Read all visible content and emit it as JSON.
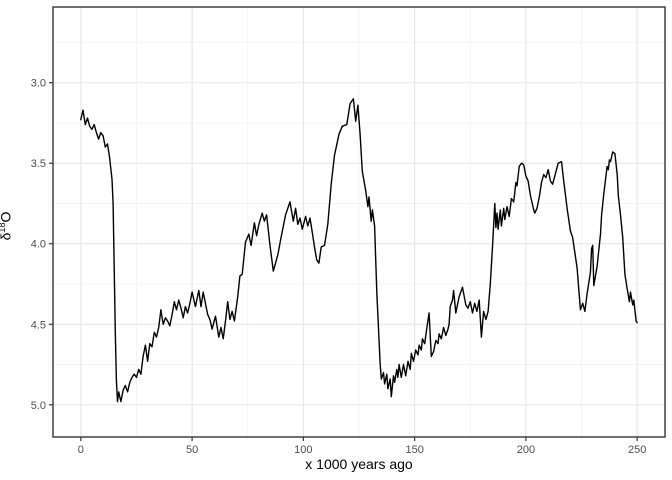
{
  "figure": {
    "background_color": "#ffffff",
    "panel_border_color": "#333333",
    "grid_major_color": "#e8e8e8",
    "grid_minor_color": "#f4f4f4",
    "tick_mark_color": "#333333",
    "tick_label_color": "#4d4d4d"
  },
  "chart_data": {
    "type": "line",
    "title": "",
    "xlabel": "x 1000 years ago",
    "ylabel": "δ18O",
    "ylabel_parts": {
      "base": "δ",
      "sup": "18",
      "suffix": "O"
    },
    "legend_position": "none",
    "grid": true,
    "y_reversed": true,
    "xlim": [
      -12.5,
      262.5
    ],
    "ylim": [
      2.53,
      5.2
    ],
    "x_ticks": [
      0,
      50,
      100,
      150,
      200,
      250
    ],
    "x_tick_labels": [
      "0",
      "50",
      "100",
      "150",
      "200",
      "250"
    ],
    "x_minor_ticks": [
      25,
      75,
      125,
      175,
      225
    ],
    "y_ticks": [
      3.0,
      3.5,
      4.0,
      4.5,
      5.0
    ],
    "y_tick_labels": [
      "3.0",
      "3.5",
      "4.0",
      "4.5",
      "5.0"
    ],
    "y_minor_ticks": [
      2.75,
      3.25,
      3.75,
      4.25,
      4.75
    ],
    "line_color": "#000000",
    "line_width": 1.4,
    "series": [
      {
        "name": "delta18O",
        "points": [
          [
            0,
            3.23
          ],
          [
            1,
            3.17
          ],
          [
            2,
            3.26
          ],
          [
            3,
            3.22
          ],
          [
            4,
            3.27
          ],
          [
            5,
            3.29
          ],
          [
            6,
            3.26
          ],
          [
            7,
            3.31
          ],
          [
            8,
            3.35
          ],
          [
            9,
            3.31
          ],
          [
            10,
            3.33
          ],
          [
            11,
            3.4
          ],
          [
            12,
            3.38
          ],
          [
            13,
            3.47
          ],
          [
            14,
            3.6
          ],
          [
            14.5,
            3.75
          ],
          [
            15.5,
            4.55
          ],
          [
            16,
            4.85
          ],
          [
            16.5,
            4.98
          ],
          [
            17,
            4.92
          ],
          [
            18,
            4.98
          ],
          [
            19,
            4.91
          ],
          [
            20,
            4.88
          ],
          [
            21,
            4.92
          ],
          [
            22,
            4.86
          ],
          [
            23,
            4.83
          ],
          [
            24,
            4.81
          ],
          [
            25,
            4.83
          ],
          [
            26,
            4.78
          ],
          [
            27,
            4.81
          ],
          [
            28,
            4.7
          ],
          [
            29,
            4.63
          ],
          [
            30,
            4.73
          ],
          [
            31,
            4.62
          ],
          [
            32,
            4.64
          ],
          [
            33,
            4.55
          ],
          [
            34,
            4.58
          ],
          [
            35,
            4.52
          ],
          [
            36,
            4.41
          ],
          [
            37,
            4.5
          ],
          [
            38,
            4.46
          ],
          [
            39,
            4.48
          ],
          [
            40,
            4.51
          ],
          [
            41,
            4.44
          ],
          [
            42,
            4.36
          ],
          [
            43,
            4.41
          ],
          [
            44,
            4.35
          ],
          [
            45,
            4.4
          ],
          [
            46,
            4.46
          ],
          [
            47,
            4.39
          ],
          [
            48,
            4.43
          ],
          [
            49,
            4.37
          ],
          [
            50,
            4.3
          ],
          [
            51.5,
            4.39
          ],
          [
            53,
            4.29
          ],
          [
            54,
            4.39
          ],
          [
            55,
            4.3
          ],
          [
            56,
            4.37
          ],
          [
            57,
            4.44
          ],
          [
            58,
            4.47
          ],
          [
            59,
            4.53
          ],
          [
            60.5,
            4.45
          ],
          [
            62,
            4.58
          ],
          [
            63,
            4.52
          ],
          [
            64,
            4.59
          ],
          [
            65,
            4.48
          ],
          [
            66,
            4.36
          ],
          [
            67,
            4.47
          ],
          [
            68,
            4.42
          ],
          [
            69,
            4.48
          ],
          [
            70.5,
            4.33
          ],
          [
            71.5,
            4.2
          ],
          [
            72.5,
            4.19
          ],
          [
            74,
            3.99
          ],
          [
            75.5,
            3.94
          ],
          [
            76.5,
            4.01
          ],
          [
            78,
            3.87
          ],
          [
            79,
            3.95
          ],
          [
            80,
            3.88
          ],
          [
            81.5,
            3.81
          ],
          [
            82.5,
            3.86
          ],
          [
            83.5,
            3.82
          ],
          [
            85,
            4.01
          ],
          [
            86.5,
            4.17
          ],
          [
            88.5,
            4.07
          ],
          [
            90,
            3.96
          ],
          [
            92,
            3.82
          ],
          [
            94,
            3.74
          ],
          [
            95.5,
            3.86
          ],
          [
            96.5,
            3.78
          ],
          [
            97.5,
            3.88
          ],
          [
            98.5,
            3.84
          ],
          [
            99.5,
            3.91
          ],
          [
            101,
            3.83
          ],
          [
            102,
            3.89
          ],
          [
            103,
            3.84
          ],
          [
            104,
            3.93
          ],
          [
            105,
            4.02
          ],
          [
            106,
            4.1
          ],
          [
            107,
            4.12
          ],
          [
            108,
            4.02
          ],
          [
            109.5,
            4.01
          ],
          [
            111,
            3.88
          ],
          [
            112.5,
            3.63
          ],
          [
            114,
            3.45
          ],
          [
            116,
            3.32
          ],
          [
            117.5,
            3.27
          ],
          [
            119.5,
            3.26
          ],
          [
            121,
            3.13
          ],
          [
            122.5,
            3.1
          ],
          [
            123.5,
            3.24
          ],
          [
            124.5,
            3.14
          ],
          [
            125.5,
            3.32
          ],
          [
            126.5,
            3.55
          ],
          [
            128,
            3.67
          ],
          [
            129,
            3.77
          ],
          [
            129.5,
            3.71
          ],
          [
            130.5,
            3.86
          ],
          [
            131,
            3.79
          ],
          [
            132,
            3.89
          ],
          [
            133,
            4.3
          ],
          [
            134.5,
            4.74
          ],
          [
            135,
            4.84
          ],
          [
            136,
            4.8
          ],
          [
            136.5,
            4.87
          ],
          [
            137.5,
            4.81
          ],
          [
            138,
            4.9
          ],
          [
            139,
            4.84
          ],
          [
            139.5,
            4.95
          ],
          [
            140.5,
            4.82
          ],
          [
            141,
            4.86
          ],
          [
            142,
            4.78
          ],
          [
            142.5,
            4.83
          ],
          [
            143,
            4.75
          ],
          [
            144,
            4.83
          ],
          [
            145,
            4.75
          ],
          [
            146,
            4.82
          ],
          [
            147,
            4.73
          ],
          [
            148,
            4.78
          ],
          [
            148.5,
            4.68
          ],
          [
            149.5,
            4.73
          ],
          [
            150.5,
            4.66
          ],
          [
            151.5,
            4.69
          ],
          [
            152,
            4.63
          ],
          [
            153,
            4.66
          ],
          [
            153.5,
            4.59
          ],
          [
            154.5,
            4.62
          ],
          [
            155.5,
            4.52
          ],
          [
            156.5,
            4.43
          ],
          [
            157.5,
            4.7
          ],
          [
            158.5,
            4.67
          ],
          [
            159.5,
            4.6
          ],
          [
            160.5,
            4.62
          ],
          [
            161,
            4.56
          ],
          [
            162,
            4.59
          ],
          [
            163,
            4.52
          ],
          [
            164,
            4.57
          ],
          [
            165,
            4.53
          ],
          [
            165.5,
            4.5
          ],
          [
            166,
            4.39
          ],
          [
            167,
            4.35
          ],
          [
            167.5,
            4.29
          ],
          [
            168.5,
            4.43
          ],
          [
            170,
            4.33
          ],
          [
            171.5,
            4.27
          ],
          [
            173,
            4.38
          ],
          [
            174,
            4.4
          ],
          [
            175,
            4.36
          ],
          [
            176,
            4.43
          ],
          [
            177,
            4.37
          ],
          [
            178,
            4.42
          ],
          [
            179,
            4.35
          ],
          [
            180,
            4.58
          ],
          [
            181,
            4.42
          ],
          [
            182,
            4.47
          ],
          [
            183,
            4.42
          ],
          [
            184,
            4.25
          ],
          [
            185,
            4.02
          ],
          [
            186,
            3.75
          ],
          [
            186.5,
            3.9
          ],
          [
            187,
            3.81
          ],
          [
            187.5,
            3.91
          ],
          [
            188.5,
            3.79
          ],
          [
            189,
            3.89
          ],
          [
            190,
            3.78
          ],
          [
            190.5,
            3.85
          ],
          [
            191.5,
            3.77
          ],
          [
            192.5,
            3.83
          ],
          [
            193.5,
            3.72
          ],
          [
            194.5,
            3.74
          ],
          [
            195.5,
            3.62
          ],
          [
            196,
            3.64
          ],
          [
            197,
            3.52
          ],
          [
            198,
            3.5
          ],
          [
            199,
            3.51
          ],
          [
            200,
            3.58
          ],
          [
            201,
            3.61
          ],
          [
            202,
            3.7
          ],
          [
            203.5,
            3.79
          ],
          [
            204,
            3.81
          ],
          [
            205,
            3.78
          ],
          [
            206,
            3.71
          ],
          [
            207,
            3.62
          ],
          [
            208,
            3.57
          ],
          [
            209,
            3.59
          ],
          [
            210,
            3.54
          ],
          [
            211,
            3.61
          ],
          [
            212,
            3.63
          ],
          [
            213,
            3.58
          ],
          [
            214.5,
            3.5
          ],
          [
            216,
            3.49
          ],
          [
            217,
            3.61
          ],
          [
            218.5,
            3.78
          ],
          [
            220,
            3.92
          ],
          [
            221,
            3.96
          ],
          [
            223,
            4.15
          ],
          [
            224.5,
            4.41
          ],
          [
            225.5,
            4.37
          ],
          [
            226.5,
            4.42
          ],
          [
            227.5,
            4.31
          ],
          [
            229,
            4.18
          ],
          [
            229.5,
            4.03
          ],
          [
            230,
            4.01
          ],
          [
            230.5,
            4.26
          ],
          [
            231.5,
            4.18
          ],
          [
            232,
            4.14
          ],
          [
            233.5,
            3.94
          ],
          [
            234,
            3.82
          ],
          [
            235,
            3.69
          ],
          [
            236.5,
            3.52
          ],
          [
            237,
            3.54
          ],
          [
            237.5,
            3.48
          ],
          [
            238,
            3.49
          ],
          [
            239,
            3.43
          ],
          [
            240,
            3.44
          ],
          [
            241,
            3.57
          ],
          [
            241.5,
            3.7
          ],
          [
            242.5,
            3.82
          ],
          [
            243.5,
            3.96
          ],
          [
            244.5,
            4.19
          ],
          [
            245.5,
            4.28
          ],
          [
            246.5,
            4.36
          ],
          [
            247,
            4.3
          ],
          [
            248,
            4.38
          ],
          [
            248.5,
            4.35
          ],
          [
            249.5,
            4.48
          ],
          [
            250,
            4.49
          ]
        ]
      }
    ]
  }
}
